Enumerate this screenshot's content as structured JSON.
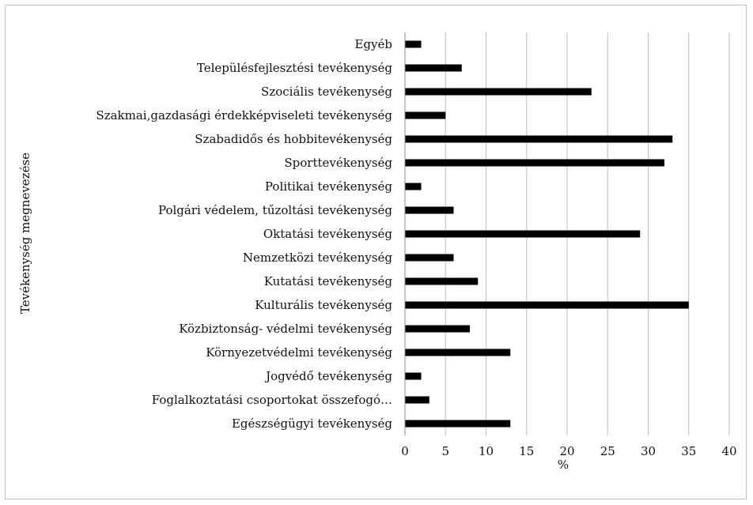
{
  "chart_data": {
    "type": "bar",
    "orientation": "horizontal",
    "title": "",
    "xlabel": "%",
    "ylabel": "Tevékenység megnevezése",
    "xlim": [
      0,
      40
    ],
    "xticks": [
      0,
      5,
      10,
      15,
      20,
      25,
      30,
      35,
      40
    ],
    "grid": true,
    "legend": "none",
    "bar_color": "#000000",
    "categories": [
      "Egyéb",
      "Településfejlesztési tevékenység",
      "Szociális tevékenység",
      "Szakmai,gazdasági érdekképviseleti tevékenység",
      "Szabadidős és hobbitevékenység",
      "Sporttevékenység",
      "Politikai tevékenység",
      "Polgári védelem, tűzoltási tevékenység",
      "Oktatási tevékenység",
      "Nemzetközi tevékenység",
      "Kutatási tevékenység",
      "Kulturális tevékenység",
      "Közbiztonság- védelmi tevékenység",
      "Környezetvédelmi tevékenység",
      "Jogvédő tevékenység",
      "Foglalkoztatási csoportokat összefogó…",
      "Egészségügyi tevékenység"
    ],
    "values": [
      2,
      7,
      23,
      5,
      33,
      32,
      2,
      6,
      29,
      6,
      9,
      35,
      8,
      13,
      2,
      3,
      13
    ]
  }
}
